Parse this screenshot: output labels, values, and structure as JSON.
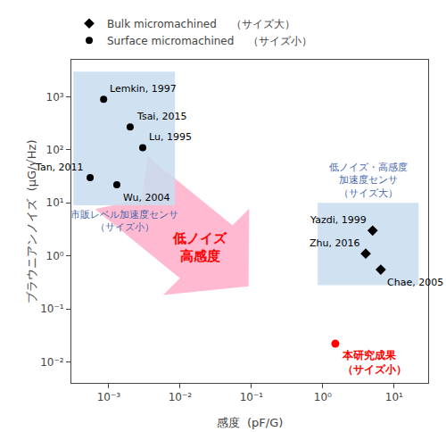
{
  "chart_data": {
    "type": "scatter",
    "log": true,
    "grid": false,
    "legend": "upper left",
    "xlabel": "感度  (pF/G)",
    "ylabel": "ブラウニアンノイズ  (μG/√Hz)",
    "xlim": [
      0.0003,
      30
    ],
    "ylim": [
      0.004,
      5000
    ],
    "xticks": [
      {
        "value": 0.001,
        "label": "10⁻³"
      },
      {
        "value": 0.01,
        "label": "10⁻²"
      },
      {
        "value": 0.1,
        "label": "10⁻¹"
      },
      {
        "value": 1,
        "label": "10⁰"
      },
      {
        "value": 10,
        "label": "10¹"
      }
    ],
    "yticks": [
      {
        "value": 0.01,
        "label": "10⁻²"
      },
      {
        "value": 0.1,
        "label": "10⁻¹"
      },
      {
        "value": 1,
        "label": "10⁰"
      },
      {
        "value": 10,
        "label": "10¹"
      },
      {
        "value": 100,
        "label": "10²"
      },
      {
        "value": 1000,
        "label": "10³"
      }
    ],
    "series": [
      {
        "name": "Bulk micromachined 　（サイズ大）",
        "color": "#000000",
        "marker": "diamond",
        "x": [
          5.0,
          4.0,
          6.5
        ],
        "y": [
          3.0,
          1.1,
          0.55
        ],
        "point_labels": [
          "Yazdi, 1999",
          "Zhu, 2016",
          "Chae, 2005"
        ]
      },
      {
        "name": "Surface micromachined 　（サイズ小）",
        "color": "#000000",
        "marker": "circle",
        "x": [
          0.00085,
          0.002,
          0.003,
          0.00055,
          0.0013
        ],
        "y": [
          900,
          270,
          110,
          30,
          22
        ],
        "point_labels": [
          "Lemkin, 1997",
          "Tsai, 2015",
          "Lu, 1995",
          "Tan, 2011",
          "Wu, 2004"
        ]
      }
    ],
    "highlight": {
      "x": [
        1.5
      ],
      "y": [
        0.022
      ],
      "label": "本研究成果\n（サイズ小）",
      "color": "#ff0000",
      "marker": "circle"
    },
    "regions": [
      {
        "x": [
          0.00032,
          0.0085
        ],
        "y": [
          9,
          3000
        ],
        "label": "市販レベル加速度センサ\n（サイズ小）",
        "color": "#c8ddf0",
        "label_color": "#4466aa"
      },
      {
        "x": [
          0.85,
          22
        ],
        "y": [
          0.28,
          10
        ],
        "label": "低ノイズ・高感度\n加速度センサ\n（サイズ大）",
        "color": "#c8ddf0",
        "label_color": "#4466aa"
      }
    ],
    "arrow": {
      "label": "低ノイズ\n高感度",
      "color": "#ffb3cc",
      "label_color": "#ff0000"
    }
  }
}
